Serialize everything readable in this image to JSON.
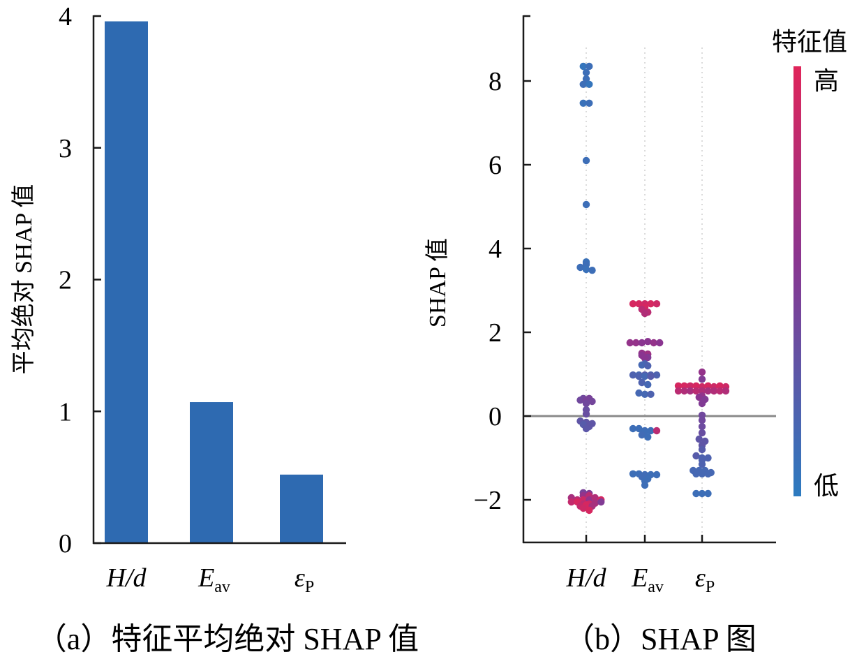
{
  "chart_data": [
    {
      "type": "bar",
      "panel": "a",
      "caption": "（a）特征平均绝对 SHAP 值",
      "ylabel": "平均绝对 SHAP 值",
      "xlabel": "",
      "ylim": [
        0,
        4
      ],
      "yticks": [
        "0",
        "1",
        "2",
        "3",
        "4"
      ],
      "categories": [
        {
          "main": "H/d",
          "sub": ""
        },
        {
          "main": "E",
          "sub": "av"
        },
        {
          "main": "ε",
          "sub": "P"
        }
      ],
      "values": [
        3.96,
        1.07,
        0.52
      ],
      "bar_color": "#2e6ab1",
      "grid": false
    },
    {
      "type": "scatter",
      "panel": "b",
      "caption": "（b）SHAP 图",
      "ylabel": "SHAP 值",
      "ylim": [
        -3,
        9.5
      ],
      "yticks": [
        "−2",
        "0",
        "2",
        "4",
        "6",
        "8"
      ],
      "ytick_values": [
        -2,
        0,
        2,
        4,
        6,
        8
      ],
      "categories": [
        {
          "main": "H/d",
          "sub": ""
        },
        {
          "main": "E",
          "sub": "av"
        },
        {
          "main": "ε",
          "sub": "P"
        }
      ],
      "colorbar": {
        "title": "特征值",
        "high_label": "高",
        "low_label": "低",
        "high_color": "#e0255a",
        "mid_color": "#8a3590",
        "low_color": "#2c7bc0"
      },
      "zero_line": 0,
      "series": [
        {
          "name": "H/d",
          "points": [
            [
              8.35,
              0.05
            ],
            [
              8.35,
              0.1
            ],
            [
              8.2,
              0.1
            ],
            [
              8.05,
              0.1
            ],
            [
              7.92,
              0.1
            ],
            [
              7.92,
              0.05
            ],
            [
              7.47,
              0.08
            ],
            [
              7.47,
              0.1
            ],
            [
              6.1,
              0.1
            ],
            [
              5.05,
              0.1
            ],
            [
              3.68,
              0.08
            ],
            [
              3.62,
              0.1
            ],
            [
              3.55,
              0.1
            ],
            [
              3.5,
              0.08
            ],
            [
              3.48,
              0.1
            ],
            [
              0.42,
              0.4
            ],
            [
              0.38,
              0.4
            ],
            [
              0.38,
              0.45
            ],
            [
              0.35,
              0.42
            ],
            [
              0.42,
              0.45
            ],
            [
              0.3,
              0.4
            ],
            [
              0.15,
              0.35
            ],
            [
              0.05,
              0.35
            ],
            [
              -0.12,
              0.3
            ],
            [
              -0.15,
              0.3
            ],
            [
              -0.18,
              0.3
            ],
            [
              -0.2,
              0.25
            ],
            [
              -0.25,
              0.3
            ],
            [
              -0.3,
              0.28
            ],
            [
              -1.83,
              0.45
            ],
            [
              -1.85,
              0.5
            ],
            [
              -1.9,
              0.6
            ],
            [
              -1.95,
              0.7
            ],
            [
              -2.0,
              0.8
            ],
            [
              -2.0,
              0.9
            ],
            [
              -2.05,
              0.85
            ],
            [
              -2.05,
              0.95
            ],
            [
              -2.1,
              0.8
            ],
            [
              -2.1,
              0.9
            ],
            [
              -2.15,
              0.85
            ],
            [
              -2.0,
              0.6
            ],
            [
              -1.95,
              0.75
            ],
            [
              -2.08,
              0.7
            ],
            [
              -2.12,
              0.95
            ],
            [
              -2.2,
              0.9
            ],
            [
              -2.25,
              0.95
            ],
            [
              -2.0,
              0.95
            ],
            [
              -1.9,
              0.8
            ],
            [
              -2.05,
              0.5
            ],
            [
              -2.15,
              0.7
            ]
          ]
        },
        {
          "name": "Eav",
          "points": [
            [
              2.68,
              0.95
            ],
            [
              2.68,
              0.95
            ],
            [
              2.68,
              0.9
            ],
            [
              2.68,
              0.95
            ],
            [
              2.68,
              0.9
            ],
            [
              2.6,
              0.95
            ],
            [
              2.55,
              0.8
            ],
            [
              2.48,
              0.8
            ],
            [
              2.45,
              0.75
            ],
            [
              1.75,
              0.6
            ],
            [
              1.75,
              0.6
            ],
            [
              1.75,
              0.55
            ],
            [
              1.78,
              0.55
            ],
            [
              1.75,
              0.6
            ],
            [
              1.75,
              0.55
            ],
            [
              1.5,
              0.6
            ],
            [
              1.48,
              0.65
            ],
            [
              1.45,
              0.55
            ],
            [
              1.4,
              0.5
            ],
            [
              1.38,
              0.55
            ],
            [
              1.25,
              0.2
            ],
            [
              1.22,
              0.15
            ],
            [
              1.2,
              0.2
            ],
            [
              0.98,
              0.2
            ],
            [
              0.98,
              0.15
            ],
            [
              0.95,
              0.2
            ],
            [
              0.98,
              0.25
            ],
            [
              0.95,
              0.15
            ],
            [
              0.98,
              0.2
            ],
            [
              0.95,
              0.25
            ],
            [
              0.98,
              0.2
            ],
            [
              0.8,
              0.2
            ],
            [
              0.75,
              0.15
            ],
            [
              0.55,
              0.15
            ],
            [
              0.52,
              0.15
            ],
            [
              0.52,
              0.2
            ],
            [
              -0.3,
              0.1
            ],
            [
              -0.3,
              0.1
            ],
            [
              -0.35,
              0.12
            ],
            [
              -0.35,
              0.1
            ],
            [
              -0.35,
              0.8
            ],
            [
              -0.38,
              0.1
            ],
            [
              -0.45,
              0.12
            ],
            [
              -0.5,
              0.1
            ],
            [
              -1.38,
              0.1
            ],
            [
              -1.38,
              0.1
            ],
            [
              -1.4,
              0.12
            ],
            [
              -1.4,
              0.1
            ],
            [
              -1.4,
              0.1
            ],
            [
              -1.45,
              0.12
            ],
            [
              -1.5,
              0.1
            ],
            [
              -1.55,
              0.1
            ],
            [
              -1.65,
              0.1
            ]
          ]
        },
        {
          "name": "εP",
          "points": [
            [
              1.05,
              0.6
            ],
            [
              0.88,
              0.5
            ],
            [
              0.72,
              0.95
            ],
            [
              0.72,
              0.95
            ],
            [
              0.72,
              0.9
            ],
            [
              0.72,
              0.95
            ],
            [
              0.7,
              0.9
            ],
            [
              0.72,
              0.95
            ],
            [
              0.7,
              0.9
            ],
            [
              0.72,
              0.95
            ],
            [
              0.7,
              0.9
            ],
            [
              0.6,
              0.8
            ],
            [
              0.6,
              0.75
            ],
            [
              0.6,
              0.7
            ],
            [
              0.6,
              0.8
            ],
            [
              0.6,
              0.75
            ],
            [
              0.6,
              0.7
            ],
            [
              0.6,
              0.75
            ],
            [
              0.6,
              0.8
            ],
            [
              0.6,
              0.75
            ],
            [
              0.48,
              0.6
            ],
            [
              0.45,
              0.55
            ],
            [
              0.4,
              0.5
            ],
            [
              0.3,
              0.5
            ],
            [
              0.02,
              0.4
            ],
            [
              -0.1,
              0.4
            ],
            [
              -0.25,
              0.38
            ],
            [
              -0.4,
              0.35
            ],
            [
              -0.55,
              0.3
            ],
            [
              -0.6,
              0.3
            ],
            [
              -0.7,
              0.3
            ],
            [
              -0.8,
              0.25
            ],
            [
              -0.95,
              0.25
            ],
            [
              -1.0,
              0.2
            ],
            [
              -1.0,
              0.2
            ],
            [
              -1.05,
              0.2
            ],
            [
              -1.15,
              0.2
            ],
            [
              -1.3,
              0.15
            ],
            [
              -1.3,
              0.15
            ],
            [
              -1.3,
              0.15
            ],
            [
              -1.35,
              0.15
            ],
            [
              -1.38,
              0.15
            ],
            [
              -1.38,
              0.15
            ],
            [
              -1.38,
              0.15
            ],
            [
              -1.85,
              0.1
            ],
            [
              -1.85,
              0.1
            ],
            [
              -1.85,
              0.1
            ]
          ]
        }
      ],
      "grid": false
    }
  ]
}
